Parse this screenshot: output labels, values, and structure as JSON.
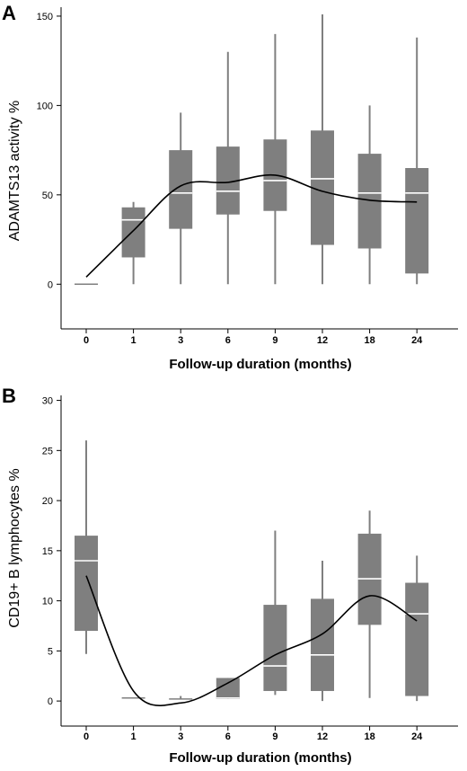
{
  "chart_data": [
    {
      "type": "box",
      "panel": "A",
      "xlabel": "Follow-up duration (months)",
      "ylabel": "ADAMTS13 activity  %",
      "ylim": [
        -25,
        155
      ],
      "yticks": [
        0,
        50,
        100,
        150
      ],
      "categories": [
        "0",
        "1",
        "3",
        "6",
        "9",
        "12",
        "18",
        "24"
      ],
      "boxes": [
        {
          "whisker_low": 0,
          "q1": 0,
          "median": 0,
          "q3": 0,
          "whisker_high": 0
        },
        {
          "whisker_low": 0,
          "q1": 15,
          "median": 36,
          "q3": 43,
          "whisker_high": 46
        },
        {
          "whisker_low": 0,
          "q1": 31,
          "median": 51,
          "q3": 75,
          "whisker_high": 96
        },
        {
          "whisker_low": 0,
          "q1": 39,
          "median": 52,
          "q3": 77,
          "whisker_high": 130
        },
        {
          "whisker_low": 0,
          "q1": 41,
          "median": 58,
          "q3": 81,
          "whisker_high": 140
        },
        {
          "whisker_low": 0,
          "q1": 22,
          "median": 59,
          "q3": 86,
          "whisker_high": 151
        },
        {
          "whisker_low": 0,
          "q1": 20,
          "median": 51,
          "q3": 73,
          "whisker_high": 100
        },
        {
          "whisker_low": 0,
          "q1": 6,
          "median": 51,
          "q3": 65,
          "whisker_high": 138
        }
      ],
      "trend": [
        4,
        30,
        55,
        57,
        61,
        52,
        47,
        46
      ]
    },
    {
      "type": "box",
      "panel": "B",
      "xlabel": "Follow-up duration (months)",
      "ylabel": "CD19+ B lymphocytes  %",
      "ylim": [
        -2.5,
        30.5
      ],
      "yticks": [
        0,
        5,
        10,
        15,
        20,
        25,
        30
      ],
      "categories": [
        "0",
        "1",
        "3",
        "6",
        "9",
        "12",
        "18",
        "24"
      ],
      "boxes": [
        {
          "whisker_low": 4.7,
          "q1": 7.0,
          "median": 14.0,
          "q3": 16.5,
          "whisker_high": 26.0
        },
        {
          "whisker_low": 0.3,
          "q1": 0.3,
          "median": 0.3,
          "q3": 0.3,
          "whisker_high": 0.3
        },
        {
          "whisker_low": 0.2,
          "q1": 0.2,
          "median": 0.2,
          "q3": 0.2,
          "whisker_high": 0.5
        },
        {
          "whisker_low": 0.2,
          "q1": 0.2,
          "median": 0.3,
          "q3": 2.3,
          "whisker_high": 2.3
        },
        {
          "whisker_low": 0.6,
          "q1": 1.0,
          "median": 3.5,
          "q3": 9.6,
          "whisker_high": 17.0
        },
        {
          "whisker_low": 0.0,
          "q1": 1.0,
          "median": 4.6,
          "q3": 10.2,
          "whisker_high": 14.0
        },
        {
          "whisker_low": 0.3,
          "q1": 7.6,
          "median": 12.2,
          "q3": 16.7,
          "whisker_high": 19.0
        },
        {
          "whisker_low": 0.0,
          "q1": 0.5,
          "median": 8.7,
          "q3": 11.8,
          "whisker_high": 14.5
        }
      ],
      "trend": [
        12.5,
        1.0,
        -0.2,
        1.8,
        4.6,
        6.7,
        10.5,
        8.0
      ]
    }
  ],
  "colors": {
    "box_fill": "#7f7f7f",
    "median_line": "#ffffff",
    "trend_line": "#000000",
    "axis": "#000000"
  }
}
